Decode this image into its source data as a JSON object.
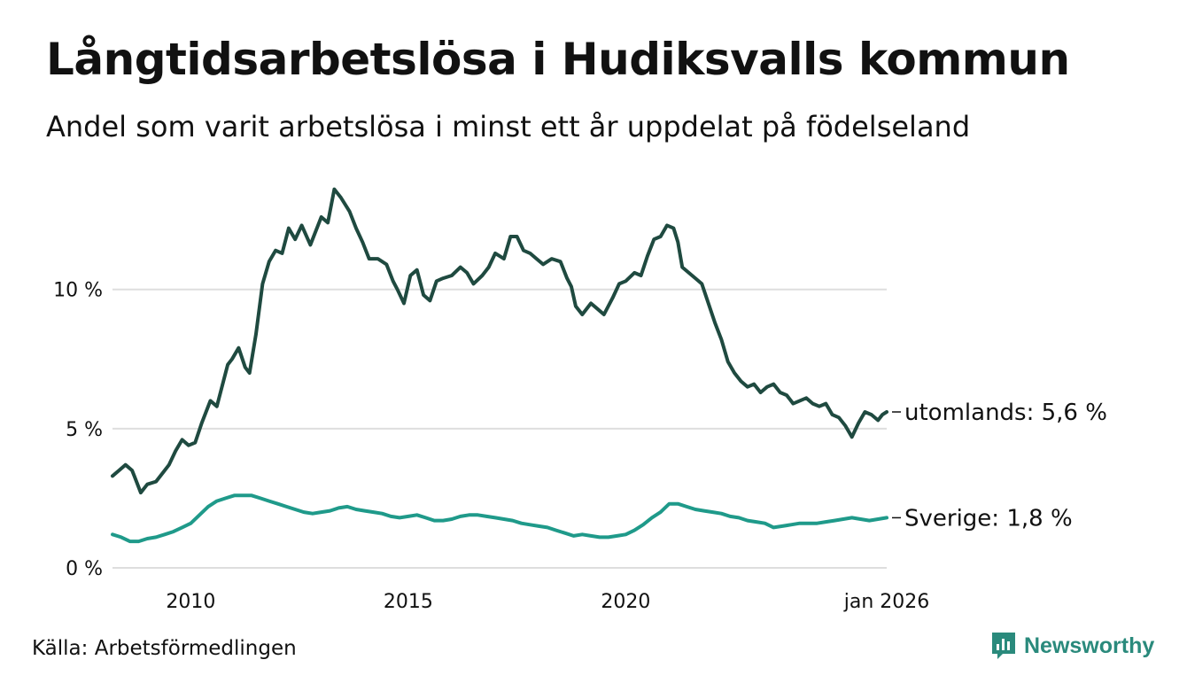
{
  "title": "Långtidsarbetslösa i Hudiksvalls kommun",
  "subtitle": "Andel som varit arbetslösa i minst ett år uppdelat på födelseland",
  "source": "Källa: Arbetsförmedlingen",
  "brand": "Newsworthy",
  "colors": {
    "utomlands": "#1f4a40",
    "sverige": "#1f9a8a",
    "grid": "#dedede",
    "brand": "#2a8a7c"
  },
  "chart_data": {
    "type": "line",
    "title": "Långtidsarbetslösa i Hudiksvalls kommun",
    "xlabel": "",
    "ylabel": "",
    "x_range": [
      2008.2,
      2026.0
    ],
    "ylim": [
      0,
      14
    ],
    "y_ticks": [
      {
        "value": 0,
        "label": "0 %"
      },
      {
        "value": 5,
        "label": "5 %"
      },
      {
        "value": 10,
        "label": "10 %"
      }
    ],
    "x_ticks": [
      {
        "value": 2010,
        "label": "2010"
      },
      {
        "value": 2015,
        "label": "2015"
      },
      {
        "value": 2020,
        "label": "2020"
      },
      {
        "value": 2026,
        "label": "jan 2026"
      }
    ],
    "grid": true,
    "series": [
      {
        "name": "utomlands",
        "end_label": "utomlands: 5,6 %",
        "color": "#1f4a40",
        "x": [
          2008.2,
          2008.35,
          2008.5,
          2008.65,
          2008.7,
          2008.85,
          2009.0,
          2009.2,
          2009.35,
          2009.5,
          2009.65,
          2009.8,
          2009.95,
          2010.1,
          2010.25,
          2010.35,
          2010.45,
          2010.6,
          2010.75,
          2010.85,
          2010.95,
          2011.1,
          2011.25,
          2011.35,
          2011.5,
          2011.65,
          2011.8,
          2011.95,
          2012.1,
          2012.25,
          2012.4,
          2012.55,
          2012.75,
          2012.85,
          2013.0,
          2013.15,
          2013.3,
          2013.45,
          2013.65,
          2013.8,
          2013.95,
          2014.1,
          2014.3,
          2014.5,
          2014.65,
          2014.75,
          2014.9,
          2015.05,
          2015.2,
          2015.35,
          2015.5,
          2015.65,
          2015.8,
          2016.0,
          2016.2,
          2016.35,
          2016.5,
          2016.7,
          2016.85,
          2017.0,
          2017.2,
          2017.35,
          2017.5,
          2017.65,
          2017.8,
          2017.95,
          2018.1,
          2018.3,
          2018.5,
          2018.65,
          2018.75,
          2018.85,
          2019.0,
          2019.2,
          2019.35,
          2019.5,
          2019.7,
          2019.85,
          2020.0,
          2020.2,
          2020.35,
          2020.5,
          2020.65,
          2020.8,
          2020.95,
          2021.1,
          2021.2,
          2021.3,
          2021.45,
          2021.6,
          2021.75,
          2021.9,
          2022.05,
          2022.2,
          2022.35,
          2022.5,
          2022.65,
          2022.8,
          2022.95,
          2023.1,
          2023.25,
          2023.4,
          2023.55,
          2023.7,
          2023.85,
          2024.0,
          2024.15,
          2024.3,
          2024.45,
          2024.6,
          2024.75,
          2024.9,
          2025.05,
          2025.2,
          2025.35,
          2025.5,
          2025.65,
          2025.8,
          2025.9,
          2026.0
        ],
        "values": [
          3.3,
          3.5,
          3.7,
          3.5,
          3.3,
          2.7,
          3.0,
          3.1,
          3.4,
          3.7,
          4.2,
          4.6,
          4.4,
          4.5,
          5.2,
          5.6,
          6.0,
          5.8,
          6.7,
          7.3,
          7.5,
          7.9,
          7.2,
          7.0,
          8.4,
          10.2,
          11.0,
          11.4,
          11.3,
          12.2,
          11.8,
          12.3,
          11.6,
          12.0,
          12.6,
          12.4,
          13.6,
          13.3,
          12.8,
          12.2,
          11.7,
          11.1,
          11.1,
          10.9,
          10.3,
          10.0,
          9.5,
          10.5,
          10.7,
          9.8,
          9.6,
          10.3,
          10.4,
          10.5,
          10.8,
          10.6,
          10.2,
          10.5,
          10.8,
          11.3,
          11.1,
          11.9,
          11.9,
          11.4,
          11.3,
          11.1,
          10.9,
          11.1,
          11.0,
          10.4,
          10.1,
          9.4,
          9.1,
          9.5,
          9.3,
          9.1,
          9.7,
          10.2,
          10.3,
          10.6,
          10.5,
          11.2,
          11.8,
          11.9,
          12.3,
          12.2,
          11.7,
          10.8,
          10.6,
          10.4,
          10.2,
          9.5,
          8.8,
          8.2,
          7.4,
          7.0,
          6.7,
          6.5,
          6.6,
          6.3,
          6.5,
          6.6,
          6.3,
          6.2,
          5.9,
          6.0,
          6.1,
          5.9,
          5.8,
          5.9,
          5.5,
          5.4,
          5.1,
          4.7,
          5.2,
          5.6,
          5.5,
          5.3,
          5.5,
          5.6
        ]
      },
      {
        "name": "Sverige",
        "end_label": "Sverige: 1,8 %",
        "color": "#1f9a8a",
        "x": [
          2008.2,
          2008.4,
          2008.6,
          2008.8,
          2009.0,
          2009.2,
          2009.4,
          2009.6,
          2009.8,
          2010.0,
          2010.2,
          2010.4,
          2010.6,
          2010.8,
          2011.0,
          2011.2,
          2011.4,
          2011.6,
          2011.8,
          2012.0,
          2012.2,
          2012.4,
          2012.6,
          2012.8,
          2013.0,
          2013.2,
          2013.4,
          2013.6,
          2013.8,
          2014.0,
          2014.2,
          2014.4,
          2014.6,
          2014.8,
          2015.0,
          2015.2,
          2015.4,
          2015.6,
          2015.8,
          2016.0,
          2016.2,
          2016.4,
          2016.6,
          2016.8,
          2017.0,
          2017.2,
          2017.4,
          2017.6,
          2017.8,
          2018.0,
          2018.2,
          2018.4,
          2018.6,
          2018.8,
          2019.0,
          2019.2,
          2019.4,
          2019.6,
          2019.8,
          2020.0,
          2020.2,
          2020.4,
          2020.6,
          2020.8,
          2021.0,
          2021.2,
          2021.4,
          2021.6,
          2021.8,
          2022.0,
          2022.2,
          2022.4,
          2022.6,
          2022.8,
          2023.0,
          2023.2,
          2023.4,
          2023.6,
          2023.8,
          2024.0,
          2024.2,
          2024.4,
          2024.6,
          2024.8,
          2025.0,
          2025.2,
          2025.4,
          2025.6,
          2025.8,
          2026.0
        ],
        "values": [
          1.2,
          1.1,
          0.95,
          0.95,
          1.05,
          1.1,
          1.2,
          1.3,
          1.45,
          1.6,
          1.9,
          2.2,
          2.4,
          2.5,
          2.6,
          2.6,
          2.6,
          2.5,
          2.4,
          2.3,
          2.2,
          2.1,
          2.0,
          1.95,
          2.0,
          2.05,
          2.15,
          2.2,
          2.1,
          2.05,
          2.0,
          1.95,
          1.85,
          1.8,
          1.85,
          1.9,
          1.8,
          1.7,
          1.7,
          1.75,
          1.85,
          1.9,
          1.9,
          1.85,
          1.8,
          1.75,
          1.7,
          1.6,
          1.55,
          1.5,
          1.45,
          1.35,
          1.25,
          1.15,
          1.2,
          1.15,
          1.1,
          1.1,
          1.15,
          1.2,
          1.35,
          1.55,
          1.8,
          2.0,
          2.3,
          2.3,
          2.2,
          2.1,
          2.05,
          2.0,
          1.95,
          1.85,
          1.8,
          1.7,
          1.65,
          1.6,
          1.45,
          1.5,
          1.55,
          1.6,
          1.6,
          1.6,
          1.65,
          1.7,
          1.75,
          1.8,
          1.75,
          1.7,
          1.75,
          1.8
        ]
      }
    ]
  }
}
